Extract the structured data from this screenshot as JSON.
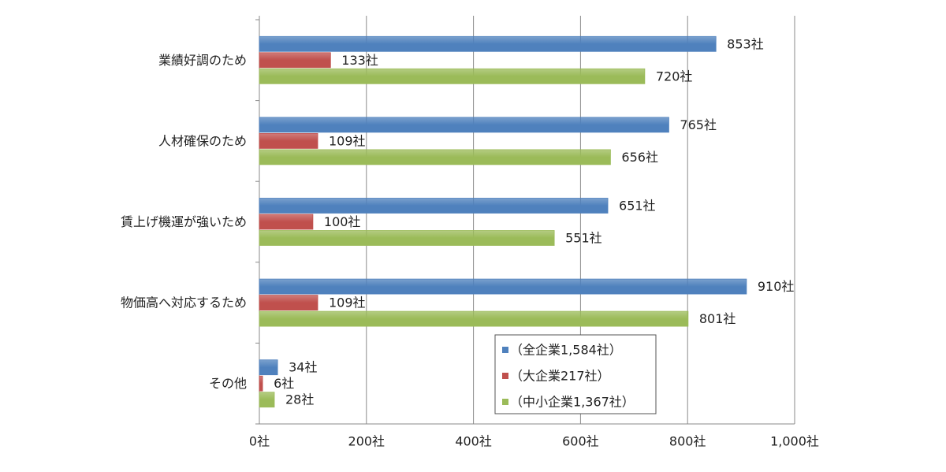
{
  "chart_data": {
    "type": "barh",
    "categories": [
      "業績好調のため",
      "人材確保のため",
      "賃上げ機運が強いため",
      "物価高へ対応するため",
      "その他"
    ],
    "series": [
      {
        "name": "（全企業1,584社）",
        "color": "#4f81bd",
        "values": [
          853,
          765,
          651,
          910,
          34
        ],
        "value_labels": [
          "853社",
          "765社",
          "651社",
          "910社",
          "34社"
        ]
      },
      {
        "name": "（大企業217社）",
        "color": "#c0504d",
        "values": [
          133,
          109,
          100,
          109,
          6
        ],
        "value_labels": [
          "133社",
          "109社",
          "100社",
          "109社",
          "6社"
        ]
      },
      {
        "name": "（中小企業1,367社）",
        "color": "#9bbb59",
        "values": [
          720,
          656,
          551,
          801,
          28
        ],
        "value_labels": [
          "720社",
          "656社",
          "551社",
          "801社",
          "28社"
        ]
      }
    ],
    "xlim": [
      0,
      1000
    ],
    "xticks": [
      {
        "value": 0,
        "label": "0社"
      },
      {
        "value": 200,
        "label": "200社"
      },
      {
        "value": 400,
        "label": "400社"
      },
      {
        "value": 600,
        "label": "600社"
      },
      {
        "value": 800,
        "label": "800社"
      },
      {
        "value": 1000,
        "label": "1,000社"
      }
    ],
    "grid": true,
    "legend": "lower right"
  }
}
